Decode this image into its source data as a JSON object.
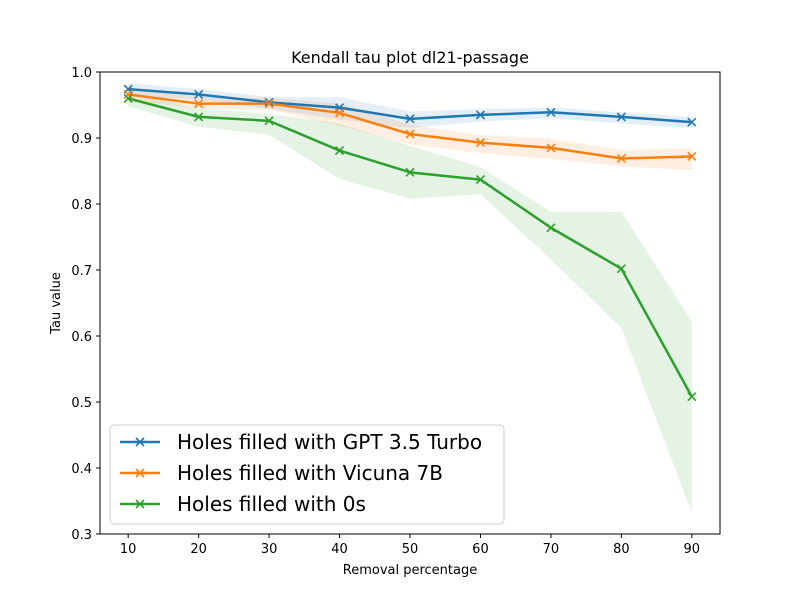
{
  "chart_data": {
    "type": "line",
    "title": "Kendall tau plot dl21-passage",
    "xlabel": "Removal percentage",
    "ylabel": "Tau value",
    "x": [
      10,
      20,
      30,
      40,
      50,
      60,
      70,
      80,
      90
    ],
    "xlim": [
      6,
      94
    ],
    "ylim": [
      0.3,
      1.0
    ],
    "xticks": [
      "10",
      "20",
      "30",
      "40",
      "50",
      "60",
      "70",
      "80",
      "90"
    ],
    "yticks": [
      "0.3",
      "0.4",
      "0.5",
      "0.6",
      "0.7",
      "0.8",
      "0.9",
      "1.0"
    ],
    "grid": false,
    "legend_position": "lower-left",
    "series": [
      {
        "name": "Holes filled with GPT 3.5 Turbo",
        "color": "#1f77b4",
        "marker": "x",
        "values": [
          0.974,
          0.966,
          0.954,
          0.946,
          0.929,
          0.935,
          0.939,
          0.932,
          0.924
        ],
        "band_low": [
          0.965,
          0.958,
          0.944,
          0.928,
          0.915,
          0.925,
          0.93,
          0.922,
          0.915
        ],
        "band_high": [
          0.983,
          0.974,
          0.962,
          0.962,
          0.94,
          0.944,
          0.946,
          0.939,
          0.932
        ]
      },
      {
        "name": "Holes filled with Vicuna 7B",
        "color": "#ff7f0e",
        "marker": "x",
        "values": [
          0.966,
          0.952,
          0.952,
          0.938,
          0.906,
          0.893,
          0.885,
          0.869,
          0.872
        ],
        "band_low": [
          0.958,
          0.944,
          0.943,
          0.918,
          0.89,
          0.877,
          0.868,
          0.857,
          0.851
        ],
        "band_high": [
          0.976,
          0.962,
          0.961,
          0.952,
          0.92,
          0.905,
          0.899,
          0.882,
          0.885
        ]
      },
      {
        "name": "Holes filled with 0s",
        "color": "#2ca02c",
        "marker": "x",
        "values": [
          0.96,
          0.932,
          0.926,
          0.881,
          0.848,
          0.837,
          0.764,
          0.702,
          0.508
        ],
        "band_low": [
          0.948,
          0.917,
          0.905,
          0.838,
          0.808,
          0.815,
          0.716,
          0.612,
          0.333
        ],
        "band_high": [
          0.97,
          0.944,
          0.937,
          0.922,
          0.888,
          0.856,
          0.788,
          0.788,
          0.622
        ]
      }
    ]
  }
}
